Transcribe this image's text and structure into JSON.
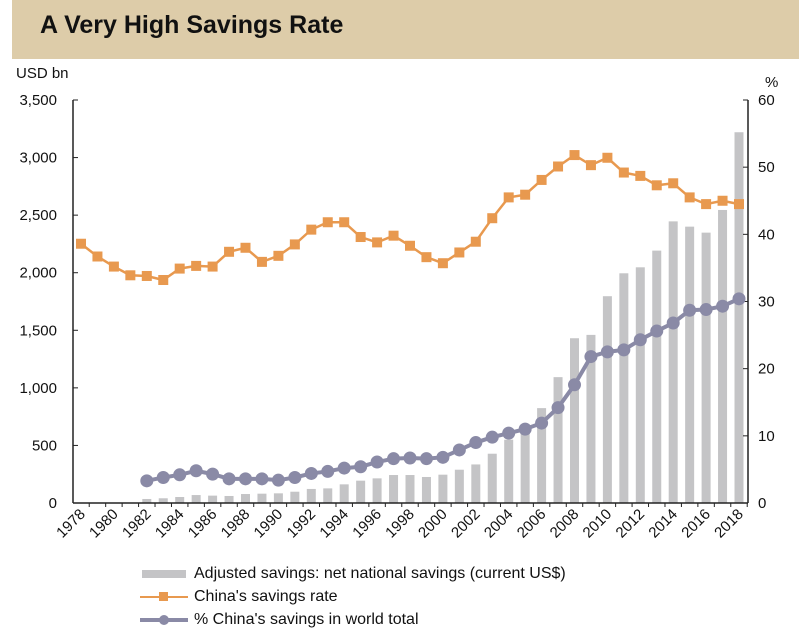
{
  "title": "A Very High Savings Rate",
  "chart_data": {
    "type": "bar+line",
    "title": "A Very High Savings Rate",
    "ylabel_left": "USD bn",
    "ylabel_right": "%",
    "ylim_left": [
      0,
      3500
    ],
    "ylim_right": [
      0,
      60
    ],
    "yticks_left": [
      "0",
      "500",
      "1,000",
      "1,500",
      "2,000",
      "2,500",
      "3,000",
      "3,500"
    ],
    "yticks_right": [
      "0",
      "10",
      "20",
      "30",
      "40",
      "50",
      "60"
    ],
    "xticks": [
      "1978",
      "1980",
      "1982",
      "1984",
      "1986",
      "1988",
      "1990",
      "1992",
      "1994",
      "1996",
      "1998",
      "2000",
      "2002",
      "2004",
      "2006",
      "2008",
      "2010",
      "2012",
      "2014",
      "2016",
      "2018"
    ],
    "grid": false,
    "legend_position": "bottom",
    "x": [
      1978,
      1979,
      1980,
      1981,
      1982,
      1983,
      1984,
      1985,
      1986,
      1987,
      1988,
      1989,
      1990,
      1991,
      1992,
      1993,
      1994,
      1995,
      1996,
      1997,
      1998,
      1999,
      2000,
      2001,
      2002,
      2003,
      2004,
      2005,
      2006,
      2007,
      2008,
      2009,
      2010,
      2011,
      2012,
      2013,
      2014,
      2015,
      2016,
      2017,
      2018
    ],
    "series": [
      {
        "name": "Adjusted savings: net national savings (current US$)",
        "type": "bar",
        "axis": "left",
        "color": "#c4c4c6",
        "values": [
          null,
          null,
          null,
          null,
          35,
          41,
          52,
          69,
          64,
          61,
          78,
          81,
          84,
          98,
          122,
          127,
          162,
          194,
          214,
          243,
          243,
          226,
          246,
          289,
          335,
          428,
          550,
          640,
          824,
          1093,
          1431,
          1460,
          1796,
          1995,
          2047,
          2192,
          2446,
          2400,
          2348,
          2545,
          3220
        ]
      },
      {
        "name": "China's savings rate",
        "type": "line",
        "marker": "square",
        "axis": "right",
        "color": "#e8994f",
        "values": [
          38.6,
          36.7,
          35.2,
          33.9,
          33.8,
          33.2,
          34.9,
          35.3,
          35.2,
          37.4,
          38.0,
          35.9,
          36.8,
          38.5,
          40.7,
          41.8,
          41.8,
          39.6,
          38.8,
          39.8,
          38.3,
          36.6,
          35.7,
          37.3,
          38.9,
          42.4,
          45.5,
          45.9,
          48.1,
          50.1,
          51.8,
          50.3,
          51.4,
          49.2,
          48.7,
          47.3,
          47.6,
          45.5,
          44.5,
          45.0,
          44.5
        ]
      },
      {
        "name": "% China's savings in world total",
        "type": "line",
        "marker": "circle",
        "axis": "right",
        "color": "#8a8aa6",
        "values": [
          null,
          null,
          null,
          null,
          3.3,
          3.8,
          4.2,
          4.8,
          4.3,
          3.6,
          3.6,
          3.6,
          3.4,
          3.8,
          4.4,
          4.7,
          5.2,
          5.4,
          6.1,
          6.6,
          6.7,
          6.6,
          6.8,
          7.9,
          9.0,
          9.8,
          10.4,
          11.0,
          11.9,
          14.2,
          17.6,
          21.8,
          22.5,
          22.8,
          24.3,
          25.6,
          26.8,
          28.7,
          28.8,
          29.3,
          30.4
        ]
      }
    ]
  }
}
